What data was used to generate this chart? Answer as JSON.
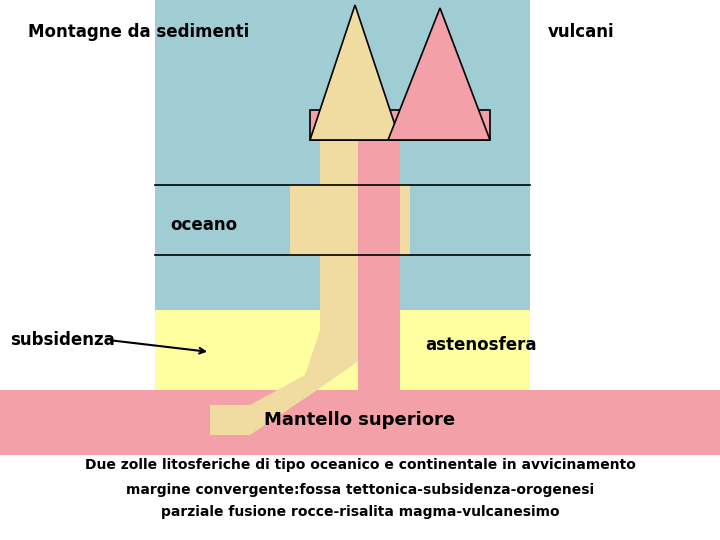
{
  "bg_color": "#ffffff",
  "sky_color": "#a0cdd4",
  "asteno_color": "#ffffa0",
  "mantle_color": "#f4a0a8",
  "white_color": "#ffffff",
  "yellow_cone_color": "#f0dca0",
  "pink_cone_color": "#f4a0a8",
  "pink_bar_color": "#f4a0a8",
  "yellow_slab_color": "#f0dca0",
  "outline_color": "#000000",
  "label_montagne": "Montagne da sedimenti",
  "label_vulcani": "vulcani",
  "label_oceano": "oceano",
  "label_subsidenza": "subsidenza",
  "label_astenosfera": "astenosfera",
  "label_mantello": "Mantello superiore",
  "label_desc1": "Due zolle litosferiche di tipo oceanico e continentale in avvicinamento",
  "label_desc2": "margine convergente:fossa tettonica-subsidenza-orogenesi",
  "label_desc3": "parziale fusione rocce-risalita magma-vulcanesimo",
  "font_size_labels": 12,
  "font_size_mantello": 13,
  "font_size_desc": 10
}
